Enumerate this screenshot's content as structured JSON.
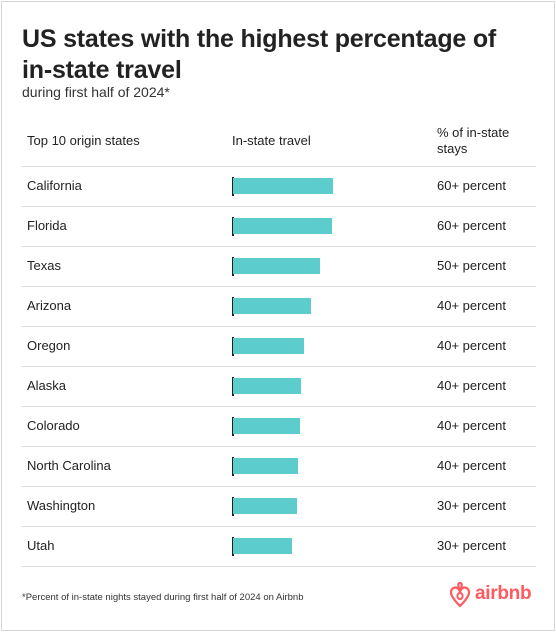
{
  "title": "US states with the highest percentage of in-state travel",
  "subtitle": "during first half of 2024*",
  "chart_data": {
    "type": "bar",
    "orientation": "horizontal",
    "columns": [
      "Top 10 origin states",
      "In-state travel",
      "% of in-state stays"
    ],
    "categories": [
      "California",
      "Florida",
      "Texas",
      "Arizona",
      "Oregon",
      "Alaska",
      "Colorado",
      "North Carolina",
      "Washington",
      "Utah"
    ],
    "values": [
      66,
      65,
      57,
      51,
      47,
      45,
      44,
      43,
      42,
      39
    ],
    "value_labels": [
      "60+ percent",
      "60+ percent",
      "50+ percent",
      "40+ percent",
      "40+ percent",
      "40+ percent",
      "40+ percent",
      "40+ percent",
      "30+ percent",
      "30+ percent"
    ],
    "xlim": [
      0,
      100
    ],
    "grid": false,
    "bar_color": "#5ccccc"
  },
  "footnote": "*Percent of in-state nights stayed during first half of 2024 on Airbnb",
  "brand": {
    "name": "airbnb",
    "color": "#ff5a5f",
    "icon": "airbnb-logo-icon"
  }
}
